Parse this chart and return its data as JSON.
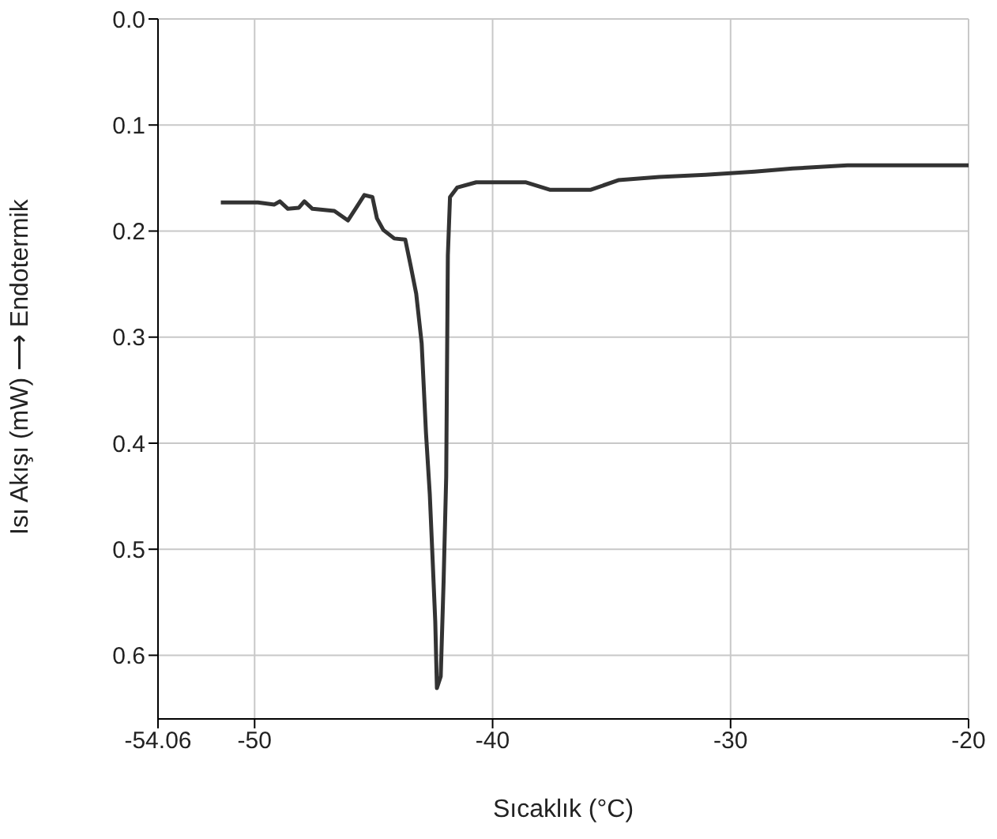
{
  "chart_data": {
    "type": "line",
    "xlabel": "Sıcaklık (°C)",
    "ylabel": "Isı Akışı (mW) ⟶ Endotermik",
    "xlim": [
      -54.06,
      -20
    ],
    "xticks": [
      -54.06,
      -50,
      -40,
      -30,
      -20
    ],
    "ylim": [
      0.66,
      0
    ],
    "yticks": [
      {
        "value": 0,
        "label": "0.0"
      },
      0.1,
      0.2,
      0.3,
      0.4,
      0.5,
      0.6
    ],
    "grid": true,
    "legend": false,
    "marker": "none",
    "line_style": "solid",
    "series": [
      {
        "color": "#333333",
        "x": [
          -51.42,
          -49.86,
          -49.17,
          -48.94,
          -48.6,
          -48.14,
          -47.91,
          -47.57,
          -46.65,
          -46.08,
          -45.73,
          -45.39,
          -45.05,
          -44.86,
          -44.59,
          -44.13,
          -43.67,
          -43.44,
          -43.21,
          -42.98,
          -42.8,
          -42.64,
          -42.52,
          -42.41,
          -42.34,
          -42.18,
          -42.06,
          -41.95,
          -41.88,
          -41.79,
          -41.49,
          -40.69,
          -40,
          -38.62,
          -37.6,
          -35.87,
          -34.72,
          -33,
          -31.05,
          -28.99,
          -27.39,
          -25.09,
          -20
        ],
        "values": [
          0.173,
          0.173,
          0.175,
          0.172,
          0.179,
          0.178,
          0.172,
          0.179,
          0.181,
          0.19,
          0.178,
          0.166,
          0.168,
          0.188,
          0.199,
          0.207,
          0.208,
          0.233,
          0.259,
          0.306,
          0.39,
          0.448,
          0.51,
          0.568,
          0.631,
          0.62,
          0.531,
          0.432,
          0.223,
          0.168,
          0.159,
          0.154,
          0.154,
          0.154,
          0.161,
          0.161,
          0.152,
          0.149,
          0.147,
          0.144,
          0.141,
          0.138,
          0.138
        ]
      }
    ]
  }
}
